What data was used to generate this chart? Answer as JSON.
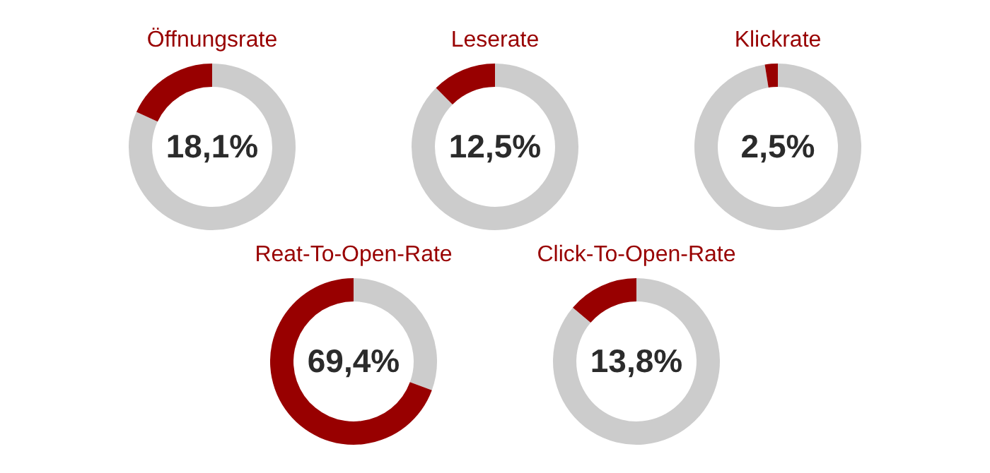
{
  "chart_data": [
    {
      "type": "donut",
      "title": "Öffnungsrate",
      "categories": [
        null,
        null
      ],
      "values": [
        81.9,
        18.1
      ],
      "colors": [
        "#cccccc",
        "#980000"
      ],
      "value_labels": [
        null,
        "18,1%"
      ]
    },
    {
      "type": "donut",
      "title": "Leserate",
      "categories": [
        null,
        null
      ],
      "values": [
        87.5,
        12.5
      ],
      "colors": [
        "#cccccc",
        "#980000"
      ],
      "value_labels": [
        null,
        "12,5%"
      ]
    },
    {
      "type": "donut",
      "title": "Klickrate",
      "categories": [
        null,
        null
      ],
      "values": [
        97.5,
        2.5
      ],
      "colors": [
        "#cccccc",
        "#980000"
      ],
      "value_labels": [
        null,
        "2,5%"
      ]
    },
    {
      "type": "donut",
      "title": "Reat-To-Open-Rate",
      "categories": [
        null,
        null
      ],
      "values": [
        30.6,
        69.4
      ],
      "colors": [
        "#cccccc",
        "#980000"
      ],
      "value_labels": [
        null,
        "69,4%"
      ]
    },
    {
      "type": "donut",
      "title": "Click-To-Open-Rate",
      "categories": [
        null,
        null
      ],
      "values": [
        86.2,
        13.8
      ],
      "colors": [
        "#cccccc",
        "#980000"
      ],
      "value_labels": [
        null,
        "13,8%"
      ]
    }
  ]
}
